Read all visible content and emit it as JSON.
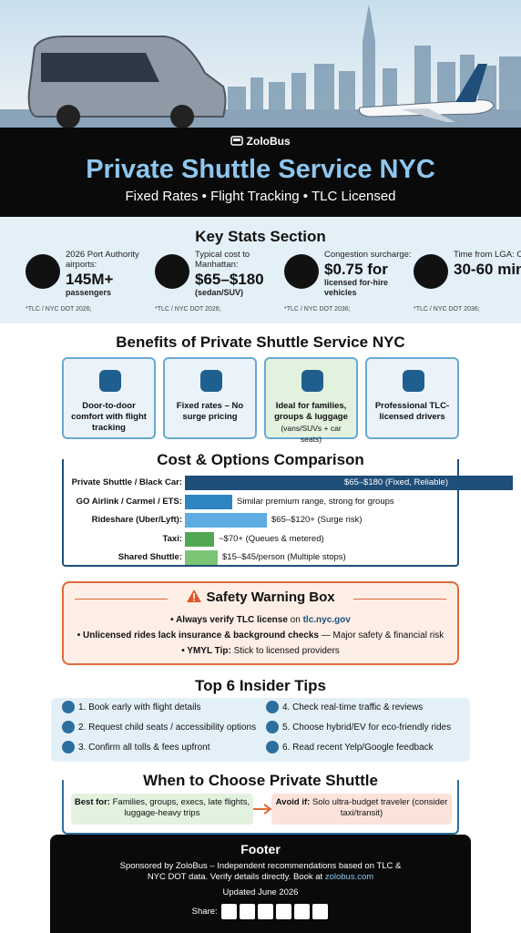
{
  "header": {
    "brand": "ZoloBus",
    "title": "Private Shuttle Service NYC",
    "subtitle": "Fixed Rates • Flight Tracking • TLC Licensed"
  },
  "key_stats": {
    "heading": "Key Stats Section",
    "items": [
      {
        "label": "2026 Port Authority airports:",
        "value": "145M+",
        "detail": "passengers",
        "source": "*TLC / NYC DOT 2026;"
      },
      {
        "label": "Typical cost to Manhattan:",
        "value": "$65–$180",
        "detail": "(sedan/SUV)",
        "source": "*TLC / NYC DOT 2026;"
      },
      {
        "label": "Congestion surcharge:",
        "value": "$0.75 for",
        "detail": "licensed for-hire vehicles",
        "source": "*TLC / NYC DOT 2036;"
      },
      {
        "label": "Time from LGA: Often",
        "value": "30-60 min",
        "detail": "",
        "source": "*TLC / NYC DOT 2036;"
      }
    ]
  },
  "benefits": {
    "heading": "Benefits of Private Shuttle Service NYC",
    "cards": [
      {
        "text": "Door-to-door comfort with flight tracking"
      },
      {
        "text": "Fixed rates – No surge pricing"
      },
      {
        "text": "Ideal for families, groups & luggage",
        "note": "(vans/SUVs + car seats)"
      },
      {
        "text": "Professional TLC-licensed drivers"
      }
    ]
  },
  "comparison": {
    "heading": "Cost & Options Comparison",
    "rows": [
      {
        "label": "Private Shuttle / Black Car:",
        "text": "$65–$180 (Fixed, Reliable)"
      },
      {
        "label": "GO Airlink / Carmel / ETS:",
        "text": "Similar premium range, strong for groups"
      },
      {
        "label": "Rideshare (Uber/Lyft):",
        "text": "$65–$120+ (Surge risk)"
      },
      {
        "label": "Taxi:",
        "text": "~$70+ (Queues & metered)"
      },
      {
        "label": "Shared Shuttle:",
        "text": "$15–$45/person (Multiple stops)"
      }
    ]
  },
  "safety": {
    "heading": "Safety Warning Box",
    "lines": [
      [
        "• Always verify TLC license",
        " on ",
        "tlc.nyc.gov"
      ],
      [
        "• Unlicensed rides lack insurance & background checks",
        " — Major safety & financial risk"
      ],
      [
        "• YMYL Tip:",
        " Stick to licensed providers"
      ]
    ]
  },
  "tips": {
    "heading": "Top 6 Insider Tips",
    "items": [
      "1. Book early with flight details",
      "2. Request child seats / accessibility options",
      "3. Confirm all tolls & fees upfront",
      "4. Check real-time traffic & reviews",
      "5. Choose hybrid/EV for eco-friendly rides",
      "6. Read recent Yelp/Google feedback"
    ]
  },
  "when": {
    "heading": "When to Choose Private Shuttle",
    "best_label": "Best for:",
    "best_text": " Families, groups, execs, late flights, luggage-heavy trips",
    "avoid_label": "Avoid if:",
    "avoid_text": " Solo ultra-budget traveler (consider taxi/transit)"
  },
  "footer": {
    "heading": "Footer",
    "text": "Sponsored by ZoloBus – Independent recommendations based on TLC & NYC DOT data. Verify details directly. Book at ",
    "link": "zolobus.com",
    "updated": "Updated June 2026",
    "share": "Share:"
  }
}
